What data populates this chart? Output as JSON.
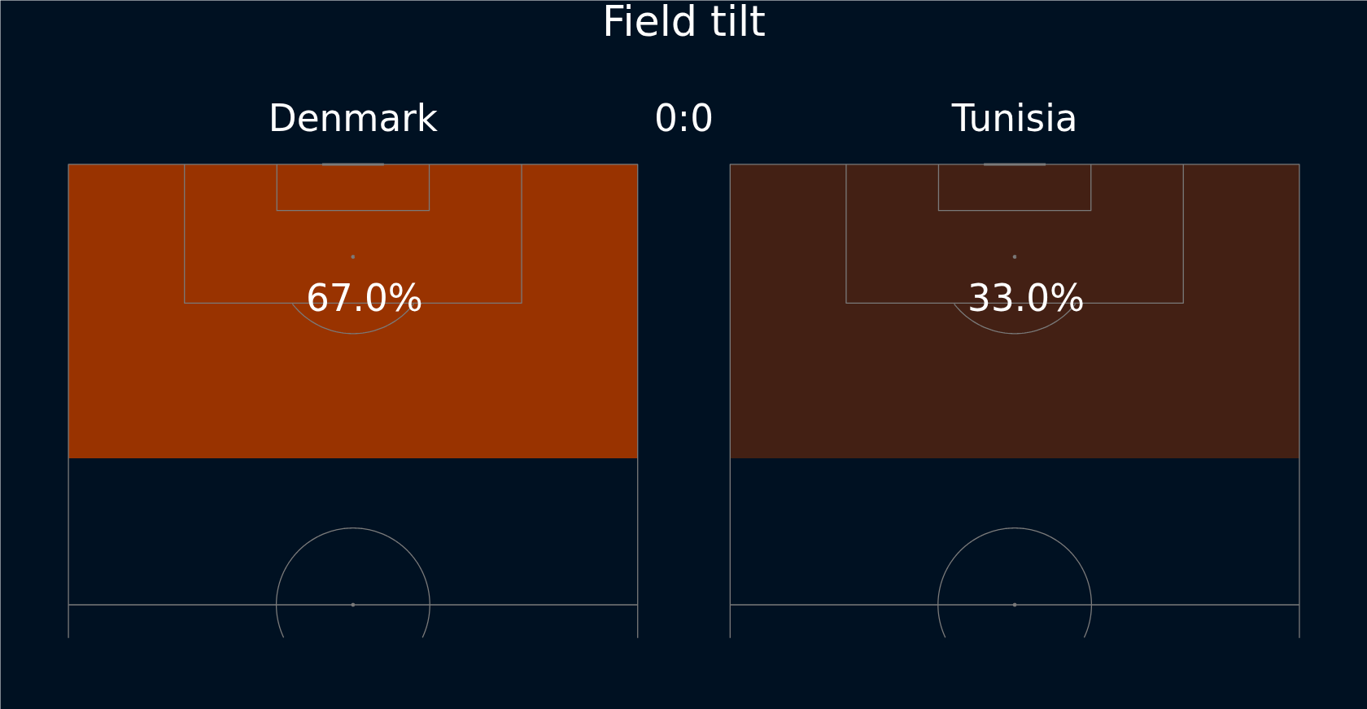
{
  "chart_data": {
    "type": "other",
    "title": "Field tilt",
    "categories": [
      "Denmark",
      "Tunisia"
    ],
    "values": [
      67.0,
      33.0
    ],
    "colors": [
      "#993300",
      "#432014"
    ],
    "value_labels": [
      "67.0%",
      "33.0%"
    ],
    "annotations": [
      "0:0"
    ]
  }
}
